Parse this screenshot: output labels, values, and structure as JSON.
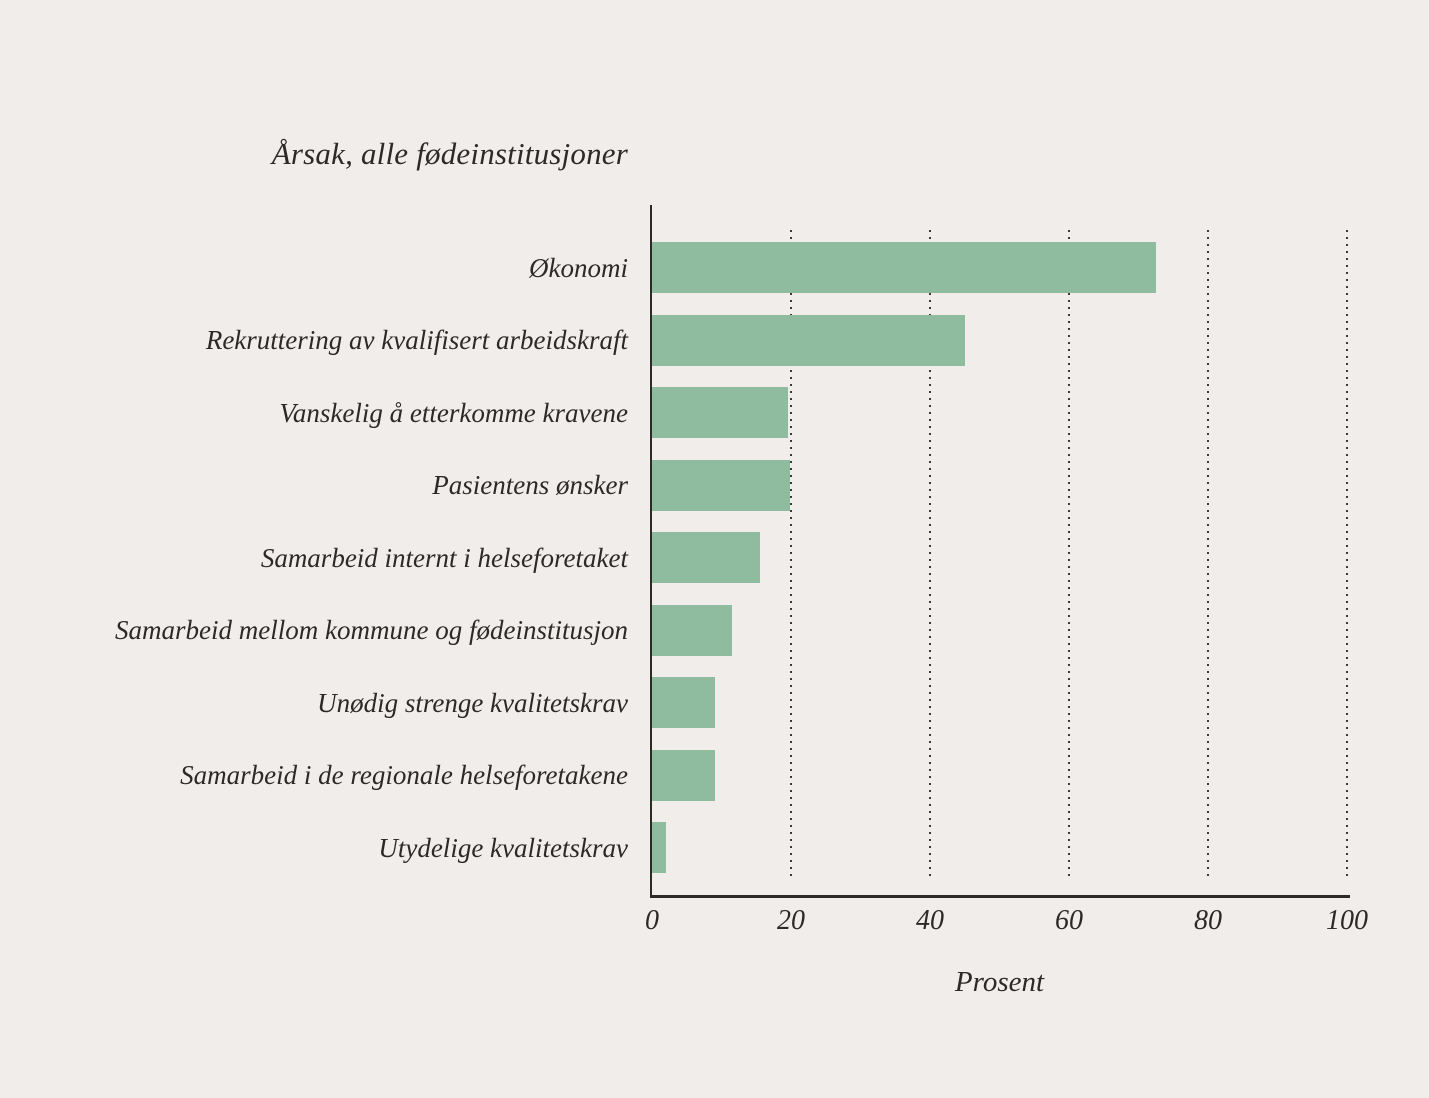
{
  "chart_data": {
    "type": "bar",
    "orientation": "horizontal",
    "title": "Årsak, alle fødeinstitusjoner",
    "xlabel": "Prosent",
    "categories": [
      "Økonomi",
      "Rekruttering av kvalifisert arbeidskraft",
      "Vanskelig å etterkomme kravene",
      "Pasientens ønsker",
      "Samarbeid internt i helseforetaket",
      "Samarbeid mellom kommune og fødeinstitusjon",
      "Unødig strenge kvalitetskrav",
      "Samarbeid i de regionale helseforetakene",
      "Utydelige kvalitetskrav"
    ],
    "values": [
      72.5,
      45,
      19.6,
      19.8,
      15.5,
      11.5,
      9,
      9,
      2
    ],
    "x_ticks": [
      0,
      20,
      40,
      60,
      80,
      100
    ],
    "xlim": [
      0,
      100
    ],
    "grid": "dotted-vertical",
    "legend": "none",
    "colors": {
      "bar": "#8fbb9e",
      "background": "#f1edea",
      "text": "#2b2a27",
      "axis": "#2b2a27",
      "gridline": "#3b3a37"
    }
  }
}
